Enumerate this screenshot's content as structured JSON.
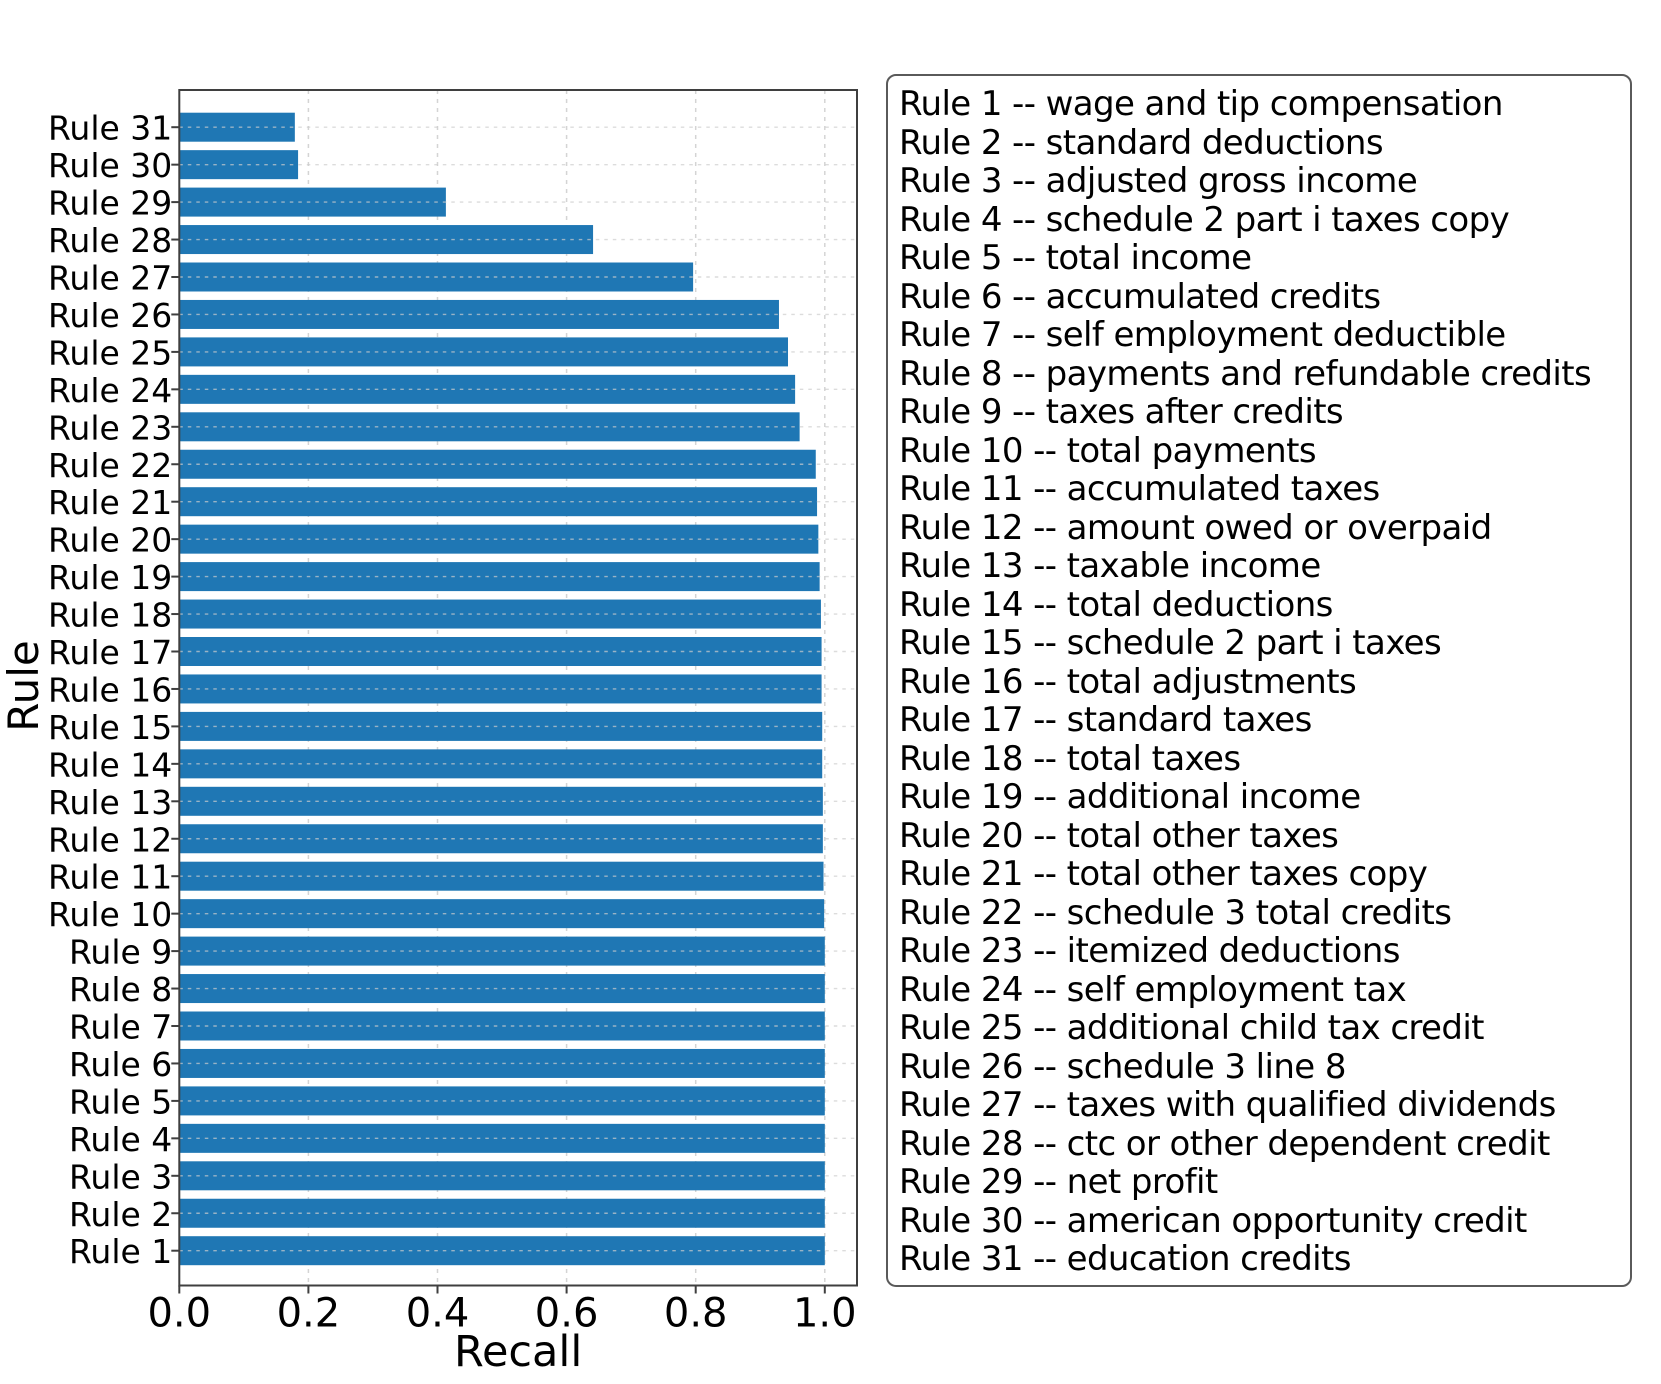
{
  "chart_data": {
    "type": "bar",
    "orientation": "horizontal",
    "xlabel": "Recall",
    "ylabel": "Rule",
    "xlim": [
      0.0,
      1.05
    ],
    "x_ticks": [
      0.0,
      0.2,
      0.4,
      0.6,
      0.8,
      1.0
    ],
    "x_tick_labels": [
      "0.0",
      "0.2",
      "0.4",
      "0.6",
      "0.8",
      "1.0"
    ],
    "grid": "dashed both axes, horizontal gridlines drawn over bars",
    "legend_position": "right of axes, framed box",
    "bar_color": "#1f77b4",
    "category_order_top_to_bottom": "Rule 31 at top, Rule 1 at bottom",
    "categories": [
      "Rule 1",
      "Rule 2",
      "Rule 3",
      "Rule 4",
      "Rule 5",
      "Rule 6",
      "Rule 7",
      "Rule 8",
      "Rule 9",
      "Rule 10",
      "Rule 11",
      "Rule 12",
      "Rule 13",
      "Rule 14",
      "Rule 15",
      "Rule 16",
      "Rule 17",
      "Rule 18",
      "Rule 19",
      "Rule 20",
      "Rule 21",
      "Rule 22",
      "Rule 23",
      "Rule 24",
      "Rule 25",
      "Rule 26",
      "Rule 27",
      "Rule 28",
      "Rule 29",
      "Rule 30",
      "Rule 31"
    ],
    "values": [
      1.0,
      1.0,
      1.0,
      1.0,
      1.0,
      1.0,
      1.0,
      1.0,
      1.0,
      0.999,
      0.998,
      0.997,
      0.997,
      0.996,
      0.996,
      0.995,
      0.995,
      0.994,
      0.992,
      0.99,
      0.988,
      0.986,
      0.961,
      0.954,
      0.943,
      0.929,
      0.796,
      0.641,
      0.413,
      0.184,
      0.179
    ]
  },
  "legend": {
    "entries": [
      "Rule 1 -- wage and tip compensation",
      "Rule 2 -- standard deductions",
      "Rule 3 -- adjusted gross income",
      "Rule 4 -- schedule 2 part i taxes copy",
      "Rule 5 -- total income",
      "Rule 6 -- accumulated credits",
      "Rule 7 -- self employment deductible",
      "Rule 8 -- payments and refundable credits",
      "Rule 9 -- taxes after credits",
      "Rule 10 -- total payments",
      "Rule 11 -- accumulated taxes",
      "Rule 12 -- amount owed or overpaid",
      "Rule 13 -- taxable income",
      "Rule 14 -- total deductions",
      "Rule 15 -- schedule 2 part i taxes",
      "Rule 16 -- total adjustments",
      "Rule 17 -- standard taxes",
      "Rule 18 -- total taxes",
      "Rule 19 -- additional income",
      "Rule 20 -- total other taxes",
      "Rule 21 -- total other taxes copy",
      "Rule 22 -- schedule 3 total credits",
      "Rule 23 -- itemized deductions",
      "Rule 24 -- self employment tax",
      "Rule 25 -- additional child tax credit",
      "Rule 26 -- schedule 3 line 8",
      "Rule 27 -- taxes with qualified dividends",
      "Rule 28 -- ctc or other dependent credit",
      "Rule 29 -- net profit",
      "Rule 30 -- american opportunity credit",
      "Rule 31 -- education credits"
    ]
  },
  "colors": {
    "bar": "#1f77b4",
    "spine": "#3f3f3f",
    "grid": "#d4d4d4",
    "legend_border": "#5a5a5a"
  }
}
